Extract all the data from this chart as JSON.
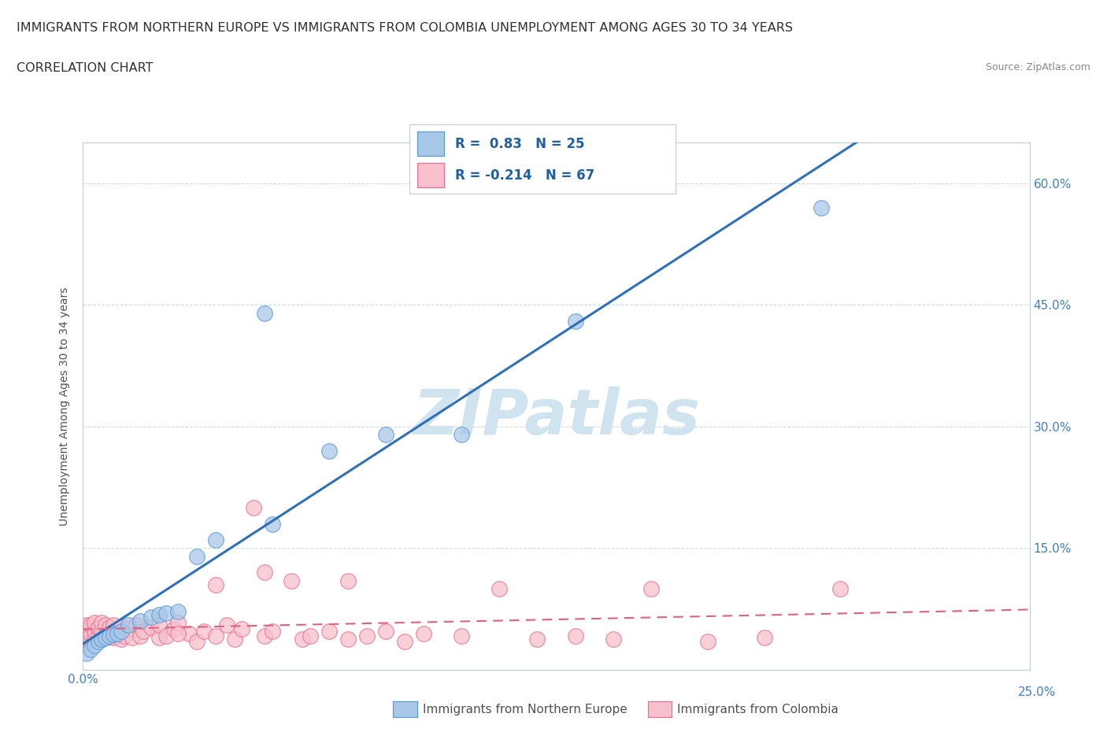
{
  "title_line1": "IMMIGRANTS FROM NORTHERN EUROPE VS IMMIGRANTS FROM COLOMBIA UNEMPLOYMENT AMONG AGES 30 TO 34 YEARS",
  "title_line2": "CORRELATION CHART",
  "source_text": "Source: ZipAtlas.com",
  "ylabel": "Unemployment Among Ages 30 to 34 years",
  "xlim": [
    0.0,
    0.25
  ],
  "ylim": [
    0.0,
    0.65
  ],
  "x_ticks": [
    0.0,
    0.05,
    0.1,
    0.15,
    0.2,
    0.25
  ],
  "y_ticks": [
    0.0,
    0.15,
    0.3,
    0.45,
    0.6
  ],
  "r_blue": 0.83,
  "n_blue": 25,
  "r_pink": -0.214,
  "n_pink": 67,
  "blue_scatter_x": [
    0.001,
    0.002,
    0.003,
    0.004,
    0.005,
    0.006,
    0.007,
    0.008,
    0.009,
    0.01,
    0.012,
    0.015,
    0.018,
    0.02,
    0.022,
    0.025,
    0.03,
    0.035,
    0.05,
    0.065,
    0.08,
    0.1,
    0.13,
    0.195,
    0.048
  ],
  "blue_scatter_y": [
    0.02,
    0.025,
    0.03,
    0.035,
    0.038,
    0.04,
    0.042,
    0.044,
    0.045,
    0.048,
    0.055,
    0.06,
    0.065,
    0.068,
    0.07,
    0.072,
    0.14,
    0.16,
    0.18,
    0.27,
    0.29,
    0.29,
    0.43,
    0.57,
    0.44
  ],
  "pink_scatter_x": [
    0.001,
    0.001,
    0.001,
    0.002,
    0.002,
    0.002,
    0.003,
    0.003,
    0.003,
    0.004,
    0.004,
    0.005,
    0.005,
    0.005,
    0.006,
    0.006,
    0.007,
    0.007,
    0.008,
    0.008,
    0.009,
    0.01,
    0.01,
    0.011,
    0.012,
    0.013,
    0.014,
    0.015,
    0.016,
    0.018,
    0.02,
    0.02,
    0.022,
    0.024,
    0.025,
    0.028,
    0.03,
    0.032,
    0.035,
    0.038,
    0.04,
    0.042,
    0.045,
    0.048,
    0.05,
    0.055,
    0.058,
    0.06,
    0.065,
    0.07,
    0.075,
    0.08,
    0.085,
    0.09,
    0.1,
    0.11,
    0.12,
    0.13,
    0.14,
    0.15,
    0.165,
    0.18,
    0.2,
    0.048,
    0.035,
    0.025,
    0.07
  ],
  "pink_scatter_y": [
    0.04,
    0.05,
    0.055,
    0.035,
    0.045,
    0.055,
    0.038,
    0.048,
    0.058,
    0.042,
    0.052,
    0.038,
    0.048,
    0.058,
    0.04,
    0.055,
    0.042,
    0.052,
    0.04,
    0.055,
    0.045,
    0.038,
    0.052,
    0.042,
    0.05,
    0.04,
    0.055,
    0.042,
    0.048,
    0.052,
    0.04,
    0.055,
    0.042,
    0.05,
    0.058,
    0.045,
    0.035,
    0.048,
    0.042,
    0.055,
    0.038,
    0.05,
    0.2,
    0.042,
    0.048,
    0.11,
    0.038,
    0.042,
    0.048,
    0.038,
    0.042,
    0.048,
    0.035,
    0.045,
    0.042,
    0.1,
    0.038,
    0.042,
    0.038,
    0.1,
    0.035,
    0.04,
    0.1,
    0.12,
    0.105,
    0.045,
    0.11
  ],
  "blue_color": "#a8c8e8",
  "blue_edge_color": "#5b9bd5",
  "pink_color": "#f8c0cc",
  "pink_edge_color": "#e87090",
  "blue_line_color": "#3070b8",
  "pink_line_color": "#e06080",
  "pink_line_dash": [
    6,
    4
  ],
  "watermark_color": "#d0e4f0",
  "background_color": "#ffffff",
  "grid_color": "#c8d8e4",
  "title_color": "#303030",
  "axis_label_color": "#505050",
  "tick_color": "#4080c0",
  "legend_text_color": "#2060a0"
}
